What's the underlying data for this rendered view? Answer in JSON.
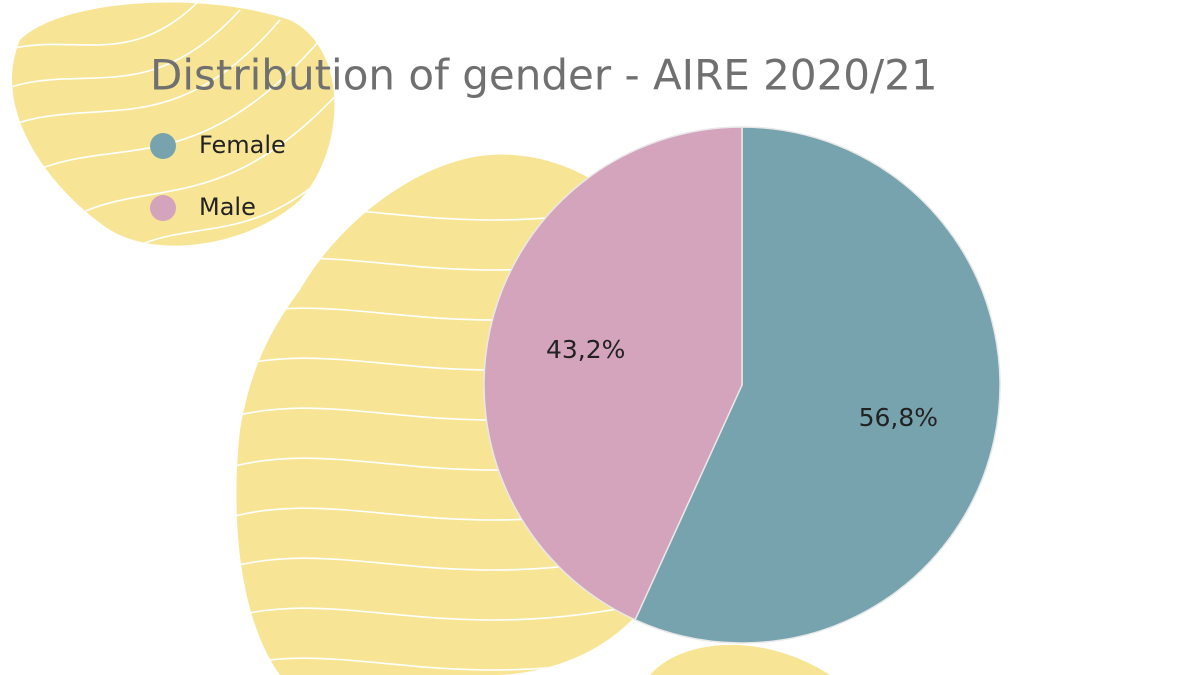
{
  "chart_data": {
    "type": "pie",
    "title": "Distribution of gender - AIRE 2020/21",
    "categories": [
      "Female",
      "Male"
    ],
    "values": [
      56.8,
      43.2
    ],
    "value_labels": [
      "56,8%",
      "43,2%"
    ],
    "colors": [
      "#77a3ae",
      "#d4a3bc"
    ],
    "legend": "top-left"
  }
}
